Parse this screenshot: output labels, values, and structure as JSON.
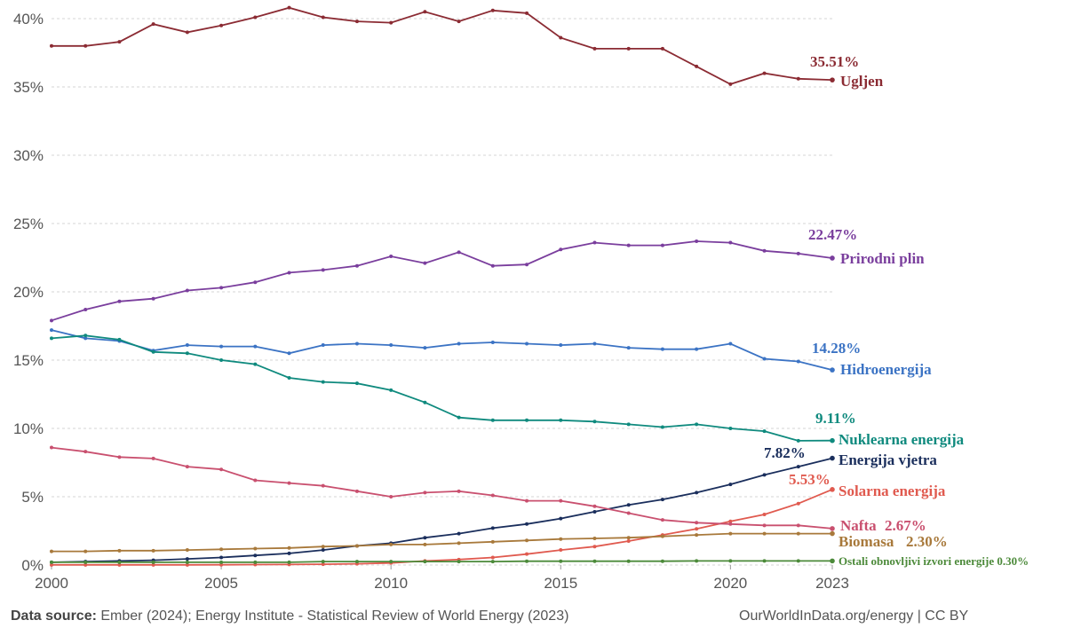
{
  "chart_data": {
    "type": "line",
    "x_ticks": [
      "2000",
      "2005",
      "2010",
      "2015",
      "2020",
      "2023"
    ],
    "y_ticks": [
      "0%",
      "5%",
      "10%",
      "15%",
      "20%",
      "25%",
      "30%",
      "35%",
      "40%"
    ],
    "ylim": [
      0,
      40
    ],
    "xlim": [
      2000,
      2023
    ],
    "grid": true,
    "years": [
      2000,
      2001,
      2002,
      2003,
      2004,
      2005,
      2006,
      2007,
      2008,
      2009,
      2010,
      2011,
      2012,
      2013,
      2014,
      2015,
      2016,
      2017,
      2018,
      2019,
      2020,
      2021,
      2022,
      2023
    ],
    "series": [
      {
        "name": "Ugljen",
        "value_label": "35.51%",
        "color": "#8b2b33",
        "values": [
          38.0,
          38.0,
          38.3,
          39.6,
          39.0,
          39.5,
          40.1,
          40.8,
          40.1,
          39.8,
          39.7,
          40.5,
          39.8,
          40.6,
          40.4,
          38.6,
          37.8,
          37.8,
          37.8,
          36.5,
          35.2,
          36.0,
          35.6,
          35.51
        ]
      },
      {
        "name": "Prirodni plin",
        "value_label": "22.47%",
        "color": "#7a3e9d",
        "values": [
          17.9,
          18.7,
          19.3,
          19.5,
          20.1,
          20.3,
          20.7,
          21.4,
          21.6,
          21.9,
          22.6,
          22.1,
          22.9,
          21.9,
          22.0,
          23.1,
          23.6,
          23.4,
          23.4,
          23.7,
          23.6,
          23.0,
          22.8,
          22.47
        ]
      },
      {
        "name": "Hidroenergija",
        "value_label": "14.28%",
        "color": "#3b73c4",
        "values": [
          17.2,
          16.6,
          16.4,
          15.7,
          16.1,
          16.0,
          16.0,
          15.5,
          16.1,
          16.2,
          16.1,
          15.9,
          16.2,
          16.3,
          16.2,
          16.1,
          16.2,
          15.9,
          15.8,
          15.8,
          16.2,
          15.1,
          14.9,
          14.28
        ]
      },
      {
        "name": "Nuklearna energija",
        "value_label": "9.11%",
        "color": "#0f8a7e",
        "values": [
          16.6,
          16.8,
          16.5,
          15.6,
          15.5,
          15.0,
          14.7,
          13.7,
          13.4,
          13.3,
          12.8,
          11.9,
          10.8,
          10.6,
          10.6,
          10.6,
          10.5,
          10.3,
          10.1,
          10.3,
          10.0,
          9.8,
          9.1,
          9.11
        ]
      },
      {
        "name": "Energija vjetra",
        "value_label": "7.82%",
        "color": "#1a2e5c",
        "values": [
          0.2,
          0.25,
          0.3,
          0.35,
          0.45,
          0.55,
          0.7,
          0.85,
          1.1,
          1.4,
          1.6,
          2.0,
          2.3,
          2.7,
          3.0,
          3.4,
          3.9,
          4.4,
          4.8,
          5.3,
          5.9,
          6.6,
          7.2,
          7.82
        ]
      },
      {
        "name": "Solarna energija",
        "value_label": "5.53%",
        "color": "#e05a4f",
        "values": [
          0.01,
          0.01,
          0.01,
          0.01,
          0.01,
          0.02,
          0.03,
          0.04,
          0.06,
          0.09,
          0.15,
          0.3,
          0.4,
          0.55,
          0.8,
          1.1,
          1.35,
          1.75,
          2.2,
          2.65,
          3.2,
          3.7,
          4.5,
          5.53
        ]
      },
      {
        "name": "Nafta",
        "value_label": "2.67%",
        "color": "#c9506f",
        "values": [
          8.6,
          8.3,
          7.9,
          7.8,
          7.2,
          7.0,
          6.2,
          6.0,
          5.8,
          5.4,
          5.0,
          5.3,
          5.4,
          5.1,
          4.7,
          4.7,
          4.3,
          3.8,
          3.3,
          3.1,
          3.0,
          2.9,
          2.9,
          2.67
        ]
      },
      {
        "name": "Biomasa",
        "value_label": "2.30%",
        "color": "#a8793b",
        "values": [
          1.0,
          1.0,
          1.05,
          1.05,
          1.1,
          1.15,
          1.2,
          1.25,
          1.35,
          1.4,
          1.5,
          1.5,
          1.6,
          1.7,
          1.8,
          1.9,
          1.95,
          2.0,
          2.1,
          2.2,
          2.3,
          2.3,
          2.3,
          2.3
        ]
      },
      {
        "name": "Ostali obnovljivi izvori energije",
        "value_label": "0.30%",
        "color": "#4c8a3a",
        "values": [
          0.2,
          0.2,
          0.2,
          0.2,
          0.2,
          0.2,
          0.2,
          0.2,
          0.25,
          0.25,
          0.25,
          0.25,
          0.25,
          0.25,
          0.28,
          0.28,
          0.28,
          0.28,
          0.28,
          0.3,
          0.3,
          0.3,
          0.3,
          0.3
        ]
      }
    ]
  },
  "labels": {
    "ugljen_value": "35.51%",
    "ugljen_name": "Ugljen",
    "plin_value": "22.47%",
    "plin_name": "Prirodni plin",
    "hidro_value": "14.28%",
    "hidro_name": "Hidroenergija",
    "nukl_value": "9.11%",
    "nukl_name": "Nuklearna energija",
    "vjetar_value": "7.82%",
    "vjetar_name": "Energija vjetra",
    "solar_value": "5.53%",
    "solar_name": "Solarna energija",
    "nafta_name": "Nafta",
    "nafta_value": "2.67%",
    "biomasa_name": "Biomasa",
    "biomasa_value": "2.30%",
    "ostali_text": "Ostali obnovljivi izvori energije 0.30%"
  },
  "footer": {
    "source_label": "Data source:",
    "source_text": "Ember (2024); Energy Institute - Statistical Review of World Energy (2023)",
    "credit": "OurWorldInData.org/energy | CC BY"
  }
}
